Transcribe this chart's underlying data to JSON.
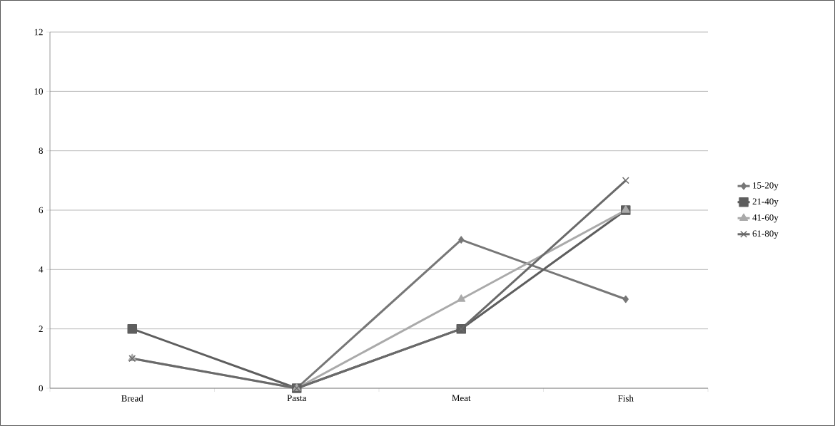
{
  "chart_data": {
    "type": "line",
    "categories": [
      "Bread",
      "Pasta",
      "Meat",
      "Fish"
    ],
    "series": [
      {
        "name": "15-20y",
        "color": "#777777",
        "marker": "diamond",
        "values": [
          null,
          0,
          5,
          3
        ]
      },
      {
        "name": "21-40y",
        "color": "#5e5e5e",
        "marker": "square",
        "values": [
          2,
          0,
          2,
          6
        ]
      },
      {
        "name": "41-60y",
        "color": "#aaaaaa",
        "marker": "triangle",
        "values": [
          1,
          0,
          3,
          6
        ]
      },
      {
        "name": "61-80y",
        "color": "#6a6a6a",
        "marker": "cross",
        "values": [
          1,
          0,
          2,
          7
        ]
      }
    ],
    "ylim": [
      0,
      12
    ],
    "yticks": [
      0,
      2,
      4,
      6,
      8,
      10,
      12
    ],
    "grid": "y",
    "legend": "right",
    "line_style": "solid"
  }
}
